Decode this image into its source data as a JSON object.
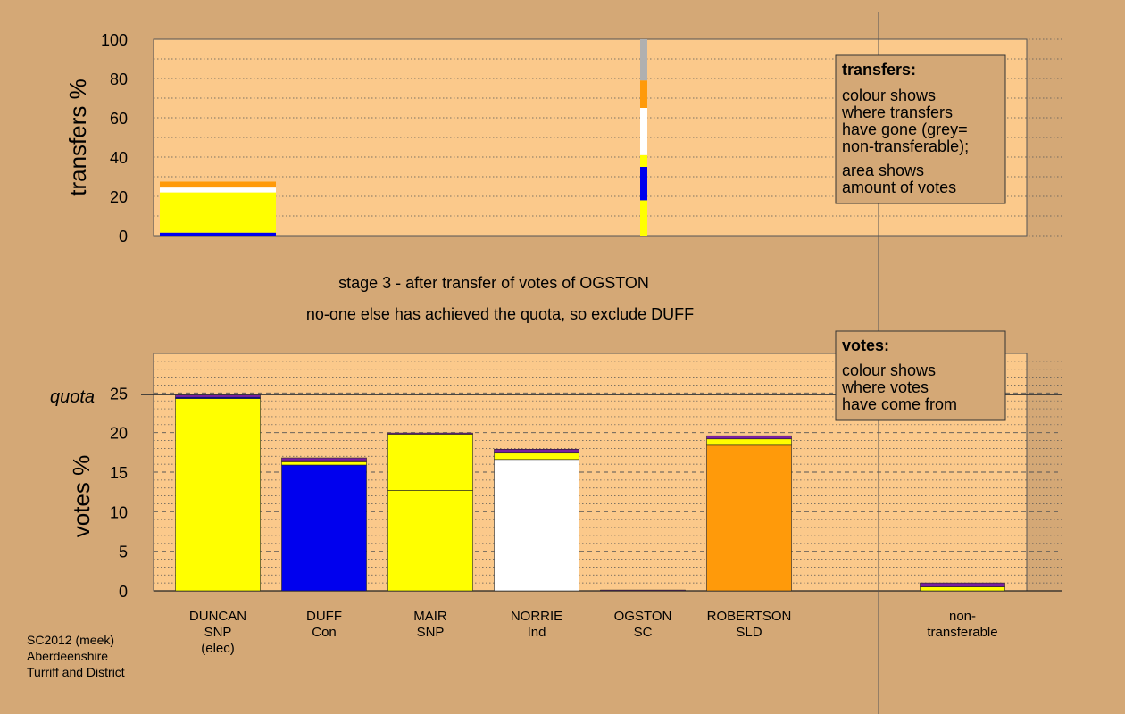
{
  "page": {
    "background": "#d4a876",
    "plot_background": "#fbc98b"
  },
  "colors": {
    "yellow": "#ffff00",
    "blue": "#0000ee",
    "white": "#ffffff",
    "orange": "#ff9a0a",
    "purple": "#7a1fa0",
    "grey": "#b0b0b0"
  },
  "messages": {
    "stage": "stage 3 - after transfer of votes of OGSTON",
    "action": "no-one else has achieved the quota, so exclude DUFF"
  },
  "footer": {
    "line1": "SC2012 (meek)",
    "line2": "Aberdeenshire",
    "line3": "Turriff and District"
  },
  "legend_transfers": {
    "title": "transfers:",
    "lines": [
      "colour shows",
      "where transfers",
      "have gone (grey=",
      "non-transferable);"
    ],
    "lines2": [
      "area shows",
      "amount of votes"
    ]
  },
  "legend_votes": {
    "title": "votes:",
    "lines": [
      "colour shows",
      "where votes",
      "have come from"
    ]
  },
  "chart_data": [
    {
      "type": "bar",
      "title": "transfers",
      "ylabel": "transfers %",
      "ylim": [
        0,
        100
      ],
      "yticks": [
        0,
        20,
        40,
        60,
        80,
        100
      ],
      "grid": "dotted",
      "bars": [
        {
          "category": "DUNCAN",
          "segments": [
            {
              "color": "blue",
              "value": 1.5
            },
            {
              "color": "yellow",
              "value": 20.5
            },
            {
              "color": "white",
              "value": 2.5
            },
            {
              "color": "orange",
              "value": 3
            }
          ]
        },
        {
          "category": "OGSTON",
          "narrow": true,
          "segments": [
            {
              "color": "yellow",
              "value": 18
            },
            {
              "color": "blue",
              "value": 17
            },
            {
              "color": "yellow",
              "value": 6
            },
            {
              "color": "white",
              "value": 24
            },
            {
              "color": "orange",
              "value": 14
            },
            {
              "color": "grey",
              "value": 21
            }
          ]
        }
      ]
    },
    {
      "type": "bar",
      "title": "votes",
      "ylabel": "votes %",
      "ylim": [
        0,
        30
      ],
      "yticks": [
        0,
        5,
        10,
        15,
        20,
        25
      ],
      "quota": 24.8,
      "quota_label": "quota",
      "grid": "dashed",
      "categories": [
        {
          "lines": [
            "DUNCAN",
            "SNP",
            "(elec)"
          ]
        },
        {
          "lines": [
            "DUFF",
            "Con"
          ]
        },
        {
          "lines": [
            "MAIR",
            "SNP"
          ]
        },
        {
          "lines": [
            "NORRIE",
            "Ind"
          ]
        },
        {
          "lines": [
            "OGSTON",
            "SC"
          ]
        },
        {
          "lines": [
            "ROBERTSON",
            "SLD"
          ]
        },
        {
          "lines": [
            "non-",
            "transferable"
          ]
        }
      ],
      "bars": [
        {
          "category": "DUNCAN",
          "segments": [
            {
              "color": "yellow",
              "value": 24.3
            },
            {
              "color": "blue",
              "value": 0.15
            },
            {
              "color": "purple",
              "value": 0.35
            }
          ]
        },
        {
          "category": "DUFF",
          "segments": [
            {
              "color": "blue",
              "value": 15.9
            },
            {
              "color": "yellow",
              "value": 0.4
            },
            {
              "color": "orange",
              "value": 0.15
            },
            {
              "color": "purple",
              "value": 0.35
            }
          ]
        },
        {
          "category": "MAIR",
          "segments": [
            {
              "color": "yellow",
              "value": 12.7
            },
            {
              "color": "yellow",
              "value": 7.1
            },
            {
              "color": "purple",
              "value": 0.15
            }
          ]
        },
        {
          "category": "NORRIE",
          "segments": [
            {
              "color": "white",
              "value": 16.6
            },
            {
              "color": "yellow",
              "value": 0.8
            },
            {
              "color": "purple",
              "value": 0.5
            }
          ]
        },
        {
          "category": "OGSTON",
          "segments": [
            {
              "color": "purple",
              "value": 0.1
            }
          ]
        },
        {
          "category": "ROBERTSON",
          "segments": [
            {
              "color": "orange",
              "value": 18.4
            },
            {
              "color": "yellow",
              "value": 0.8
            },
            {
              "color": "purple",
              "value": 0.4
            }
          ]
        },
        {
          "category": "non-transferable",
          "segments": [
            {
              "color": "yellow",
              "value": 0.5
            },
            {
              "color": "purple",
              "value": 0.5
            }
          ]
        }
      ]
    }
  ]
}
